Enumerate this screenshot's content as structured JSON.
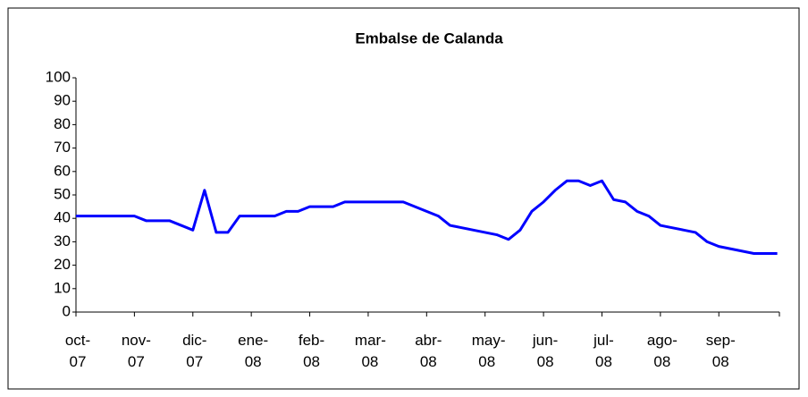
{
  "chart_data": {
    "type": "line",
    "title": "Embalse de Calanda",
    "categories": [
      "oct-07",
      null,
      null,
      null,
      null,
      "nov-07",
      null,
      null,
      null,
      null,
      "dic-07",
      null,
      null,
      null,
      null,
      "ene-08",
      null,
      null,
      null,
      null,
      "feb-08",
      null,
      null,
      null,
      null,
      "mar-08",
      null,
      null,
      null,
      null,
      "abr-08",
      null,
      null,
      null,
      null,
      "may-08",
      null,
      null,
      null,
      null,
      "jun-08",
      null,
      null,
      null,
      null,
      "jul-08",
      null,
      null,
      null,
      null,
      "ago-08",
      null,
      null,
      null,
      null,
      "sep-08",
      null,
      null,
      null,
      null,
      null
    ],
    "series": [
      {
        "name": "Embalse de Calanda",
        "color": "#0000ff",
        "values": [
          41,
          41,
          41,
          41,
          41,
          41,
          39,
          39,
          39,
          37,
          35,
          52,
          34,
          34,
          41,
          41,
          41,
          41,
          43,
          43,
          45,
          45,
          45,
          47,
          47,
          47,
          47,
          47,
          47,
          45,
          43,
          41,
          37,
          36,
          35,
          34,
          33,
          31,
          35,
          43,
          47,
          52,
          56,
          56,
          54,
          56,
          48,
          47,
          43,
          41,
          37,
          36,
          35,
          34,
          30,
          28,
          27,
          26,
          25,
          25,
          25
        ]
      }
    ],
    "ylim": [
      0,
      100
    ],
    "yticks": [
      0,
      10,
      20,
      30,
      40,
      50,
      60,
      70,
      80,
      90,
      100
    ]
  }
}
